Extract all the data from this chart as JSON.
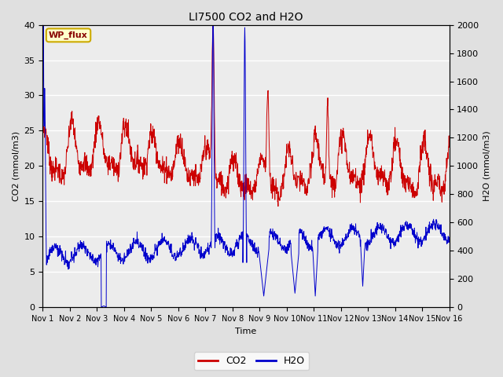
{
  "title": "LI7500 CO2 and H2O",
  "xlabel": "Time",
  "ylabel_left": "CO2 (mmol/m3)",
  "ylabel_right": "H2O (mmol/m3)",
  "annotation": "WP_flux",
  "co2_color": "#cc0000",
  "h2o_color": "#0000cc",
  "ylim_left": [
    0,
    40
  ],
  "ylim_right": [
    0,
    2000
  ],
  "yticks_left": [
    0,
    5,
    10,
    15,
    20,
    25,
    30,
    35,
    40
  ],
  "yticks_right": [
    0,
    200,
    400,
    600,
    800,
    1000,
    1200,
    1400,
    1600,
    1800,
    2000
  ],
  "xtick_labels": [
    "Nov 1",
    "Nov 2",
    "Nov 3",
    "Nov 4",
    "Nov 5",
    "Nov 6",
    "Nov 7",
    "Nov 8",
    "Nov 9",
    "Nov 10",
    "Nov 11",
    "Nov 12",
    "Nov 13",
    "Nov 14",
    "Nov 15",
    "Nov 16"
  ],
  "n_points": 1500,
  "days": 15,
  "background_color": "#e0e0e0",
  "plot_bg_color": "#ececec",
  "legend_co2": "CO2",
  "legend_h2o": "H2O",
  "figsize": [
    6.4,
    4.8
  ],
  "dpi": 100
}
